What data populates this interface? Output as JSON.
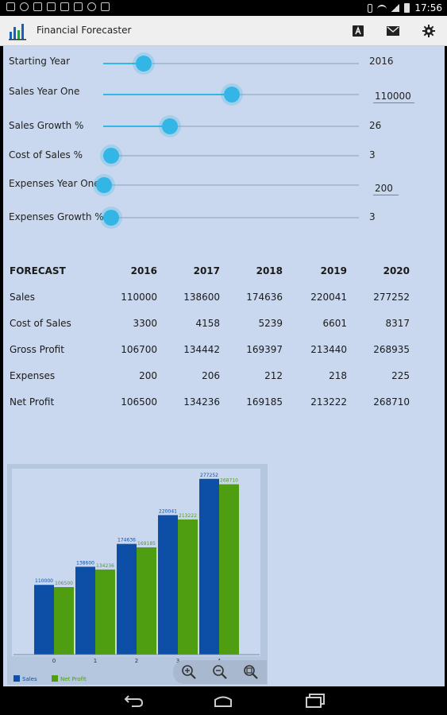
{
  "status_bar": {
    "time": "17:56"
  },
  "app": {
    "title": "Financial Forecaster"
  },
  "inputs": [
    {
      "label": "Starting Year",
      "value": "2016",
      "position": 0.17,
      "editable": false
    },
    {
      "label": "Sales Year One",
      "value": "110000",
      "position": 0.5,
      "editable": true
    },
    {
      "label": "Sales Growth %",
      "value": "26",
      "position": 0.26,
      "editable": false
    },
    {
      "label": "Cost of Sales %",
      "value": "3",
      "position": 0.03,
      "editable": false
    },
    {
      "label": "Expenses Year One",
      "value": "200",
      "position": 0.0,
      "editable": true
    },
    {
      "label": "Expenses Growth %",
      "value": "3",
      "position": 0.03,
      "editable": false
    }
  ],
  "forecast": {
    "header": "FORECAST",
    "years": [
      "2016",
      "2017",
      "2018",
      "2019",
      "2020"
    ],
    "rows": [
      {
        "label": "Sales",
        "values": [
          "110000",
          "138600",
          "174636",
          "220041",
          "277252"
        ]
      },
      {
        "label": "Cost of Sales",
        "values": [
          "3300",
          "4158",
          "5239",
          "6601",
          "8317"
        ]
      },
      {
        "label": "Gross Profit",
        "values": [
          "106700",
          "134442",
          "169397",
          "213440",
          "268935"
        ]
      },
      {
        "label": "Expenses",
        "values": [
          "200",
          "206",
          "212",
          "218",
          "225"
        ]
      },
      {
        "label": "Net Profit",
        "values": [
          "106500",
          "134236",
          "169185",
          "213222",
          "268710"
        ]
      }
    ]
  },
  "chart_data": {
    "type": "bar",
    "categories": [
      "0",
      "1",
      "2",
      "3",
      "4"
    ],
    "series": [
      {
        "name": "Sales",
        "values": [
          110000,
          138600,
          174636,
          220041,
          277252
        ],
        "color": "#0d4fa6"
      },
      {
        "name": "Net Profit",
        "values": [
          106500,
          134236,
          169185,
          213222,
          268710
        ],
        "color": "#4f9e12"
      }
    ],
    "ylim": [
      0,
      300000
    ],
    "grid": false,
    "legend": "bottom-left"
  },
  "colors": {
    "accent": "#33b5e5",
    "content_bg": "#c9d8ee",
    "sales": "#0d4fa6",
    "net_profit": "#4f9e12"
  }
}
